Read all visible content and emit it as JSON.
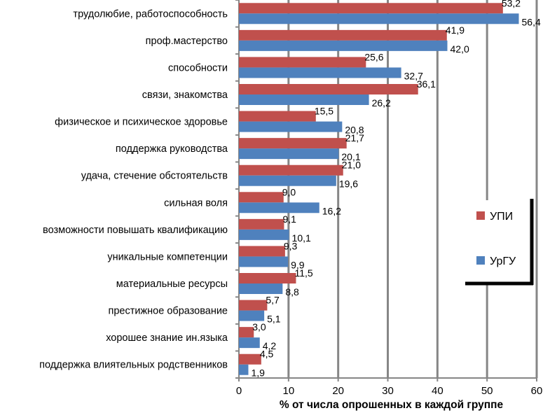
{
  "chart_data": {
    "type": "bar",
    "orientation": "horizontal",
    "categories": [
      "трудолюбие, работоспособность",
      "проф.мастерство",
      "способности",
      "связи, знакомства",
      "физическое и психическое здоровье",
      "поддержка руководства",
      "удача, стечение обстоятельств",
      "сильная воля",
      "возможности повышать квалификацию",
      "уникальные компетенции",
      "материальные ресурсы",
      "престижное образование",
      "хорошее знание ин.языка",
      "поддержка влиятельных родственников"
    ],
    "series": [
      {
        "name": "УПИ",
        "color": "#c0504d",
        "values": [
          53.2,
          41.9,
          25.6,
          36.1,
          15.5,
          21.7,
          21.0,
          9.0,
          9.1,
          9.3,
          11.5,
          5.7,
          3.0,
          4.5
        ],
        "labels": [
          "53,2",
          "41,9",
          "25,6",
          "36,1",
          "15,5",
          "21,7",
          "21,0",
          "9,0",
          "9,1",
          "9,3",
          "11,5",
          "5,7",
          "3,0",
          "4,5"
        ]
      },
      {
        "name": "УрГУ",
        "color": "#4f81bd",
        "values": [
          56.4,
          42.0,
          32.7,
          26.2,
          20.8,
          20.1,
          19.6,
          16.2,
          10.1,
          9.9,
          8.8,
          5.1,
          4.2,
          1.9
        ],
        "labels": [
          "56,4",
          "42,0",
          "32,7",
          "26,2",
          "20,8",
          "20,1",
          "19,6",
          "16,2",
          "10,1",
          "9,9",
          "8,8",
          "5,1",
          "4,2",
          "1,9"
        ]
      }
    ],
    "xlabel": "% от числа опрошенных в каждой группе",
    "xlim": [
      0,
      60
    ],
    "xticks": [
      "0",
      "10",
      "20",
      "30",
      "40",
      "50",
      "60"
    ],
    "grid": true,
    "legend": "right"
  }
}
